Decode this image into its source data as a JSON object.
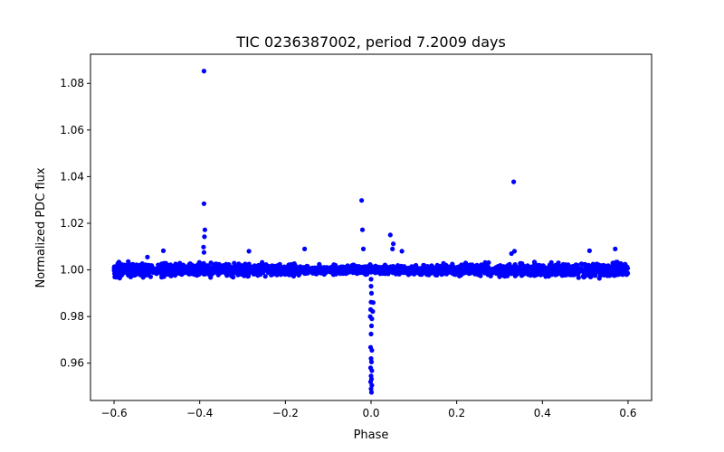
{
  "chart_data": {
    "type": "scatter",
    "title": "TIC 0236387002, period 7.2009 days",
    "xlabel": "Phase",
    "ylabel": "Normalized PDC flux",
    "xlim": [
      -0.655,
      0.655
    ],
    "ylim": [
      0.944,
      1.0925
    ],
    "xticks": [
      -0.6,
      -0.4,
      -0.2,
      0.0,
      0.2,
      0.4,
      0.6
    ],
    "xtick_labels": [
      "−0.6",
      "−0.4",
      "−0.2",
      "0.0",
      "0.2",
      "0.4",
      "0.6"
    ],
    "yticks": [
      0.96,
      0.98,
      1.0,
      1.02,
      1.04,
      1.06,
      1.08
    ],
    "ytick_labels": [
      "0.96",
      "0.98",
      "1.00",
      "1.02",
      "1.04",
      "1.06",
      "1.08"
    ],
    "grid": false,
    "marker_color": "#0000ff",
    "baseline": {
      "x_range": [
        -0.6,
        0.6
      ],
      "center": 1.0,
      "half_width": 0.0038
    },
    "points": [
      {
        "x": -0.39,
        "y": 1.0853
      },
      {
        "x": -0.39,
        "y": 1.0284
      },
      {
        "x": -0.388,
        "y": 1.0172
      },
      {
        "x": -0.389,
        "y": 1.0142
      },
      {
        "x": -0.391,
        "y": 1.0098
      },
      {
        "x": -0.39,
        "y": 1.0075
      },
      {
        "x": -0.522,
        "y": 1.0055
      },
      {
        "x": -0.485,
        "y": 1.0082
      },
      {
        "x": -0.285,
        "y": 1.008
      },
      {
        "x": -0.155,
        "y": 1.009
      },
      {
        "x": -0.022,
        "y": 1.0298
      },
      {
        "x": -0.02,
        "y": 1.0172
      },
      {
        "x": -0.018,
        "y": 1.009
      },
      {
        "x": 0.045,
        "y": 1.015
      },
      {
        "x": 0.052,
        "y": 1.0112
      },
      {
        "x": 0.05,
        "y": 1.009
      },
      {
        "x": 0.072,
        "y": 1.008
      },
      {
        "x": 0.333,
        "y": 1.0378
      },
      {
        "x": 0.335,
        "y": 1.008
      },
      {
        "x": 0.328,
        "y": 1.007
      },
      {
        "x": 0.51,
        "y": 1.0082
      },
      {
        "x": 0.57,
        "y": 1.009
      },
      {
        "x": 0.0,
        "y": 0.996
      },
      {
        "x": 0.0,
        "y": 0.993
      },
      {
        "x": 0.001,
        "y": 0.99
      },
      {
        "x": 0.0,
        "y": 0.9862
      },
      {
        "x": 0.005,
        "y": 0.986
      },
      {
        "x": -0.001,
        "y": 0.983
      },
      {
        "x": 0.004,
        "y": 0.9822
      },
      {
        "x": -0.002,
        "y": 0.98
      },
      {
        "x": 0.002,
        "y": 0.979
      },
      {
        "x": 0.001,
        "y": 0.976
      },
      {
        "x": 0.0,
        "y": 0.9725
      },
      {
        "x": -0.001,
        "y": 0.9668
      },
      {
        "x": 0.002,
        "y": 0.9655
      },
      {
        "x": 0.0,
        "y": 0.962
      },
      {
        "x": 0.001,
        "y": 0.9605
      },
      {
        "x": -0.001,
        "y": 0.958
      },
      {
        "x": 0.002,
        "y": 0.9568
      },
      {
        "x": 0.0,
        "y": 0.9545
      },
      {
        "x": 0.001,
        "y": 0.9532
      },
      {
        "x": -0.001,
        "y": 0.952
      },
      {
        "x": 0.002,
        "y": 0.9505
      },
      {
        "x": 0.0,
        "y": 0.949
      },
      {
        "x": 0.001,
        "y": 0.9475
      }
    ]
  }
}
